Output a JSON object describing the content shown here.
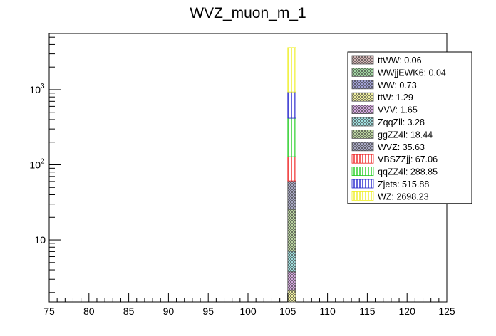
{
  "chart_data": {
    "type": "bar",
    "stacked": true,
    "title": "WVZ_muon_m_1",
    "xlabel": "",
    "ylabel": "",
    "xlim": [
      75,
      125
    ],
    "ylim": [
      1.5,
      5600
    ],
    "yscale": "log",
    "bin": [
      105,
      106
    ],
    "x_ticks": [
      "75",
      "80",
      "85",
      "90",
      "95",
      "100",
      "105",
      "110",
      "115",
      "120",
      "125"
    ],
    "y_ticks": [
      {
        "value": 10,
        "label": "10",
        "sup": ""
      },
      {
        "value": 100,
        "label": "10",
        "sup": "2"
      },
      {
        "value": 1000,
        "label": "10",
        "sup": "3"
      }
    ],
    "legend_position": "top-right",
    "series": [
      {
        "name": "ttWW: 0.06",
        "value": 0.06,
        "color": "#c48a8a",
        "pattern": "cross-hatch"
      },
      {
        "name": "WWjjEWK6: 0.04",
        "value": 0.04,
        "color": "#66cc66",
        "pattern": "cross-hatch"
      },
      {
        "name": "WW: 0.73",
        "value": 0.73,
        "color": "#6666cc",
        "pattern": "cross-hatch"
      },
      {
        "name": "ttW: 1.29",
        "value": 1.29,
        "color": "#ffff66",
        "pattern": "cross-hatch"
      },
      {
        "name": "VVV: 1.65",
        "value": 1.65,
        "color": "#cc77dd",
        "pattern": "cross-hatch"
      },
      {
        "name": "ZqqZll: 3.28",
        "value": 3.28,
        "color": "#66dddd",
        "pattern": "cross-hatch"
      },
      {
        "name": "ggZZ4l: 18.44",
        "value": 18.44,
        "color": "#99cc66",
        "pattern": "cross-hatch"
      },
      {
        "name": "WVZ: 35.63",
        "value": 35.63,
        "color": "#7777aa",
        "pattern": "cross-hatch"
      },
      {
        "name": "VBSZZjj: 67.06",
        "value": 67.06,
        "color": "#ee2222",
        "pattern": "vertical"
      },
      {
        "name": "qqZZ4l: 288.85",
        "value": 288.85,
        "color": "#22cc22",
        "pattern": "vertical"
      },
      {
        "name": "Zjets: 515.88",
        "value": 515.88,
        "color": "#2222cc",
        "pattern": "vertical"
      },
      {
        "name": "WZ: 2698.23",
        "value": 2698.23,
        "color": "#eeee22",
        "pattern": "vertical"
      }
    ]
  }
}
